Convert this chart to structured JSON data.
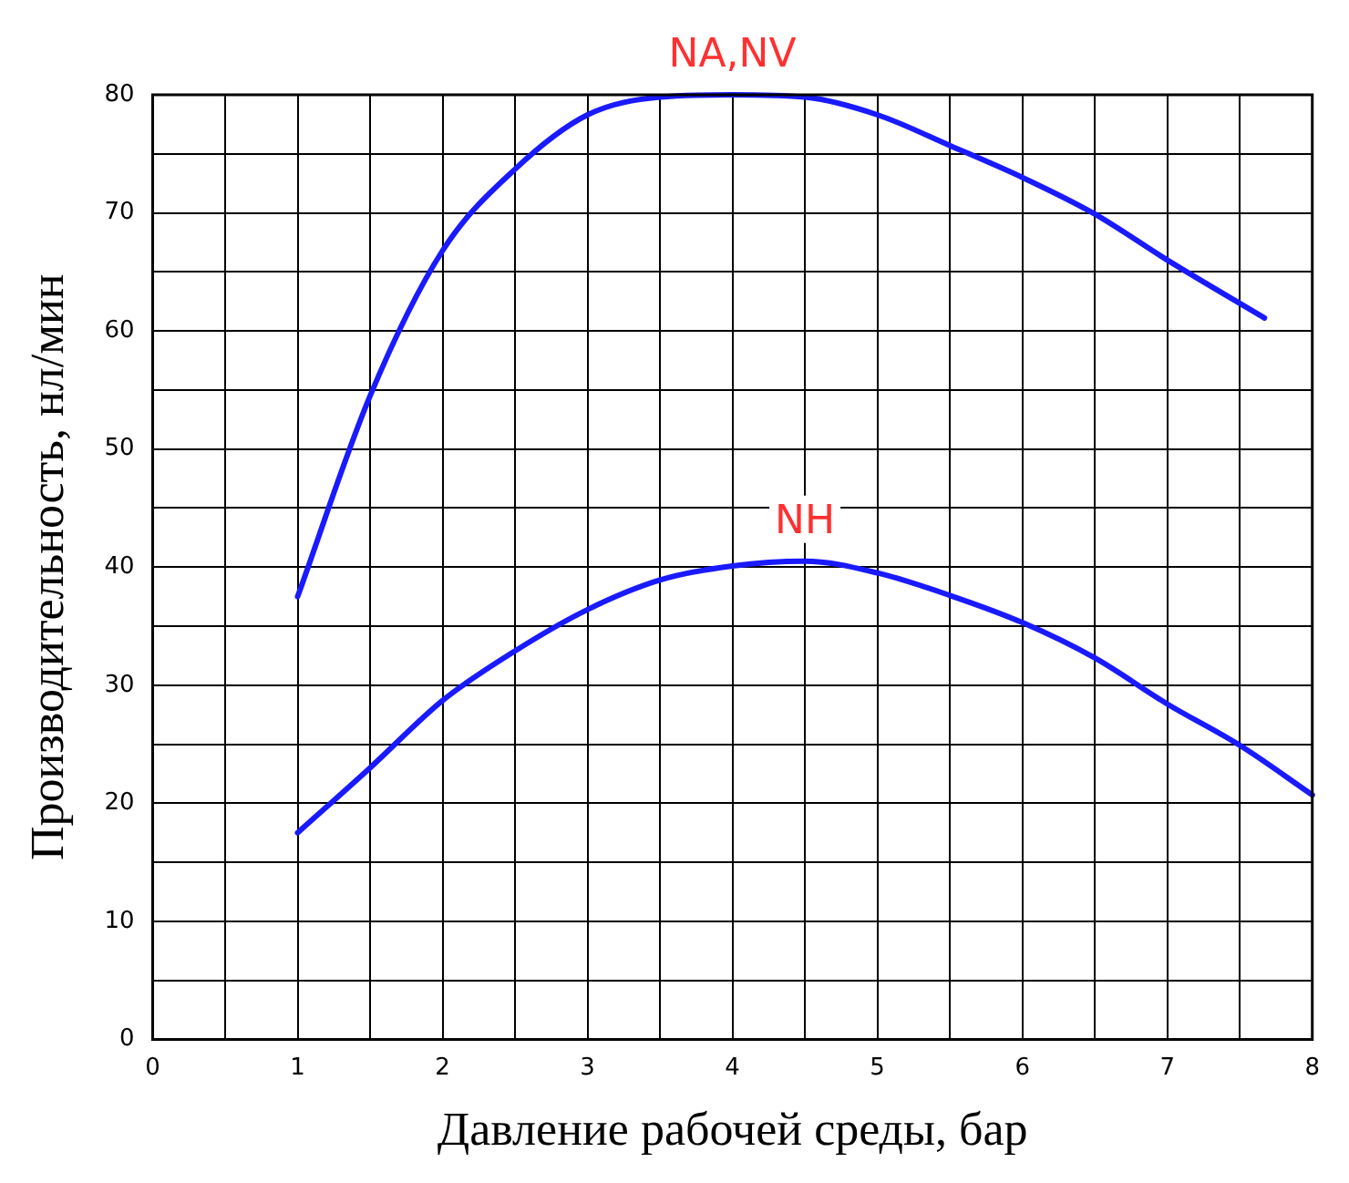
{
  "chart_data": {
    "type": "line",
    "xlabel": "Давление рабочей среды, бар",
    "ylabel": "Производительность, нл/мин",
    "xlim": [
      0,
      8
    ],
    "ylim": [
      0,
      80
    ],
    "xticks": [
      0,
      {
        "value": 0.5,
        "label": null
      },
      1,
      {
        "value": 1.5,
        "label": null
      },
      2,
      {
        "value": 2.5,
        "label": null
      },
      3,
      {
        "value": 3.5,
        "label": null
      },
      4,
      {
        "value": 4.5,
        "label": null
      },
      5,
      {
        "value": 5.5,
        "label": null
      },
      6,
      {
        "value": 6.5,
        "label": null
      },
      7,
      {
        "value": 7.5,
        "label": null
      },
      8
    ],
    "yticks": [
      0,
      {
        "value": 5,
        "label": null
      },
      10,
      {
        "value": 15,
        "label": null
      },
      20,
      {
        "value": 25,
        "label": null
      },
      30,
      {
        "value": 35,
        "label": null
      },
      40,
      {
        "value": 45,
        "label": null
      },
      50,
      {
        "value": 55,
        "label": null
      },
      60,
      {
        "value": 65,
        "label": null
      },
      70,
      {
        "value": 75,
        "label": null
      },
      80
    ],
    "grid": true,
    "legend": false,
    "marker": "none",
    "line_style": "solid",
    "series": [
      {
        "name": "NA,NV",
        "color": "#1a1aff",
        "x": [
          1,
          1.5,
          2,
          2.5,
          3,
          3.5,
          4,
          4.5,
          5,
          5.5,
          6,
          6.5,
          7,
          7.67
        ],
        "values": [
          37.5,
          54.5,
          66.8,
          73.7,
          78.3,
          79.8,
          80,
          79.8,
          78.3,
          75.7,
          73,
          69.9,
          66,
          61.1
        ]
      },
      {
        "name": "NH",
        "color": "#1a1aff",
        "x": [
          1,
          1.5,
          2,
          2.5,
          3,
          3.5,
          4,
          4.5,
          5,
          5.5,
          6,
          6.5,
          7,
          7.5,
          8
        ],
        "values": [
          17.5,
          23,
          28.7,
          32.9,
          36.4,
          38.9,
          40.1,
          40.5,
          39.5,
          37.6,
          35.3,
          32.3,
          28.4,
          24.9,
          20.7
        ]
      }
    ]
  }
}
